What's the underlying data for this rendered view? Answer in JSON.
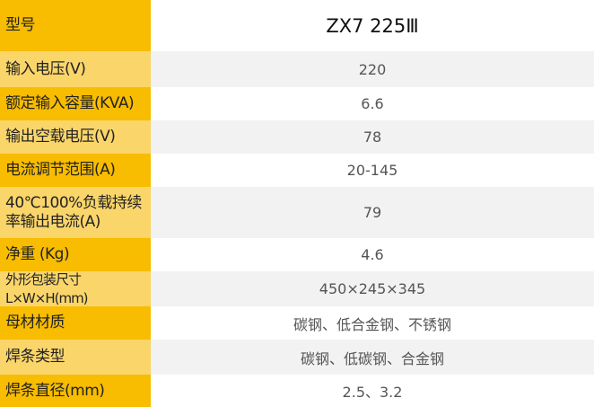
{
  "rows": [
    {
      "label": "型号",
      "value": "ZX7 225Ⅲ"
    },
    {
      "label": "输入电压(V)",
      "value": "220"
    },
    {
      "label": "额定输入容量(KVA)",
      "value": "6.6"
    },
    {
      "label": "输出空载电压(V)",
      "value": "78"
    },
    {
      "label": "电流调节范围(A)",
      "value": "20-145"
    },
    {
      "label": "40℃100%负载持续率输出电流(A)",
      "value": "79"
    },
    {
      "label": "净重 (Kg)",
      "value": "4.6"
    },
    {
      "label": "外形包装尺寸L×W×H(mm)",
      "value": "450×245×345"
    },
    {
      "label": "母材材质",
      "value": "碳钢、低合金钢、不锈钢"
    },
    {
      "label": "焊条类型",
      "value": "碳钢、低碳钢、合金钢"
    },
    {
      "label": "焊条直径(mm)",
      "value": "2.5、3.2"
    }
  ],
  "colors": {
    "dark_label": "#F8BC00",
    "light_label": "#FAD56A",
    "alt_value_bg": "#F2F2F2"
  }
}
